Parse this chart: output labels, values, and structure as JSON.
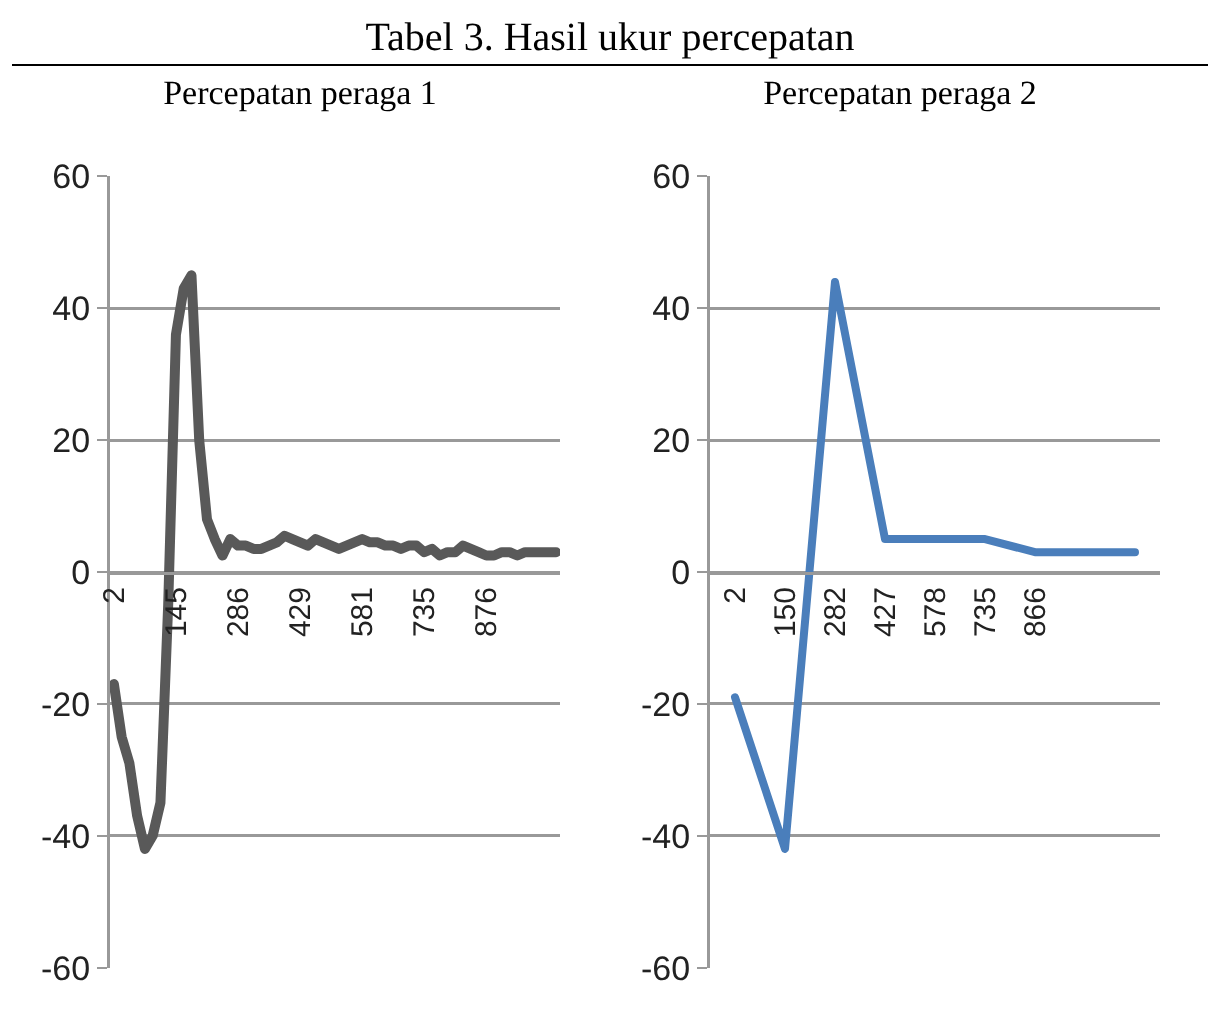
{
  "chart_data": [
    {
      "type": "line",
      "title": "Percepatan peraga 1",
      "annotations": [
        "Tabel 3. Hasil ukur percepatan"
      ],
      "categories": [
        "2",
        null,
        null,
        null,
        null,
        null,
        null,
        null,
        "145",
        null,
        null,
        null,
        null,
        null,
        null,
        null,
        "286",
        null,
        null,
        null,
        null,
        null,
        null,
        null,
        "429",
        null,
        null,
        null,
        null,
        null,
        null,
        null,
        "581",
        null,
        null,
        null,
        null,
        null,
        null,
        null,
        "735",
        null,
        null,
        null,
        null,
        null,
        null,
        null,
        "876",
        null,
        null,
        null,
        null,
        null,
        null,
        null,
        null,
        null
      ],
      "series": [
        {
          "color": "#595959",
          "values": [
            -17,
            -25,
            -29,
            -37,
            -42,
            -40,
            -35,
            -5,
            36,
            43,
            45,
            20,
            8,
            5,
            2.5,
            5,
            4,
            4,
            3.5,
            3.5,
            4,
            4.5,
            5.5,
            5,
            4.5,
            4,
            5,
            4.5,
            4,
            3.5,
            4,
            4.5,
            5,
            4.5,
            4.5,
            4,
            4,
            3.5,
            4,
            4,
            3,
            3.5,
            2.5,
            3,
            3,
            4,
            3.5,
            3,
            2.5,
            2.5,
            3,
            3,
            2.5,
            3,
            3,
            3,
            3,
            3
          ]
        }
      ],
      "ylim": [
        -60,
        60
      ],
      "yticks": [
        -60,
        -40,
        -20,
        0,
        20,
        40,
        60
      ],
      "grid": "y",
      "line_style": "solid",
      "marker": "none"
    },
    {
      "type": "line",
      "title": "Percepatan peraga 2",
      "categories": [
        "2",
        "150",
        "282",
        "427",
        "578",
        "735",
        "866",
        null,
        null
      ],
      "series": [
        {
          "color": "#4a7ebb",
          "values": [
            -19,
            -42,
            44,
            5,
            5,
            5,
            3,
            3,
            3
          ]
        }
      ],
      "ylim": [
        -60,
        60
      ],
      "yticks": [
        -60,
        -40,
        -20,
        0,
        20,
        40,
        60
      ],
      "grid": "y",
      "line_style": "solid",
      "marker": "none"
    }
  ]
}
